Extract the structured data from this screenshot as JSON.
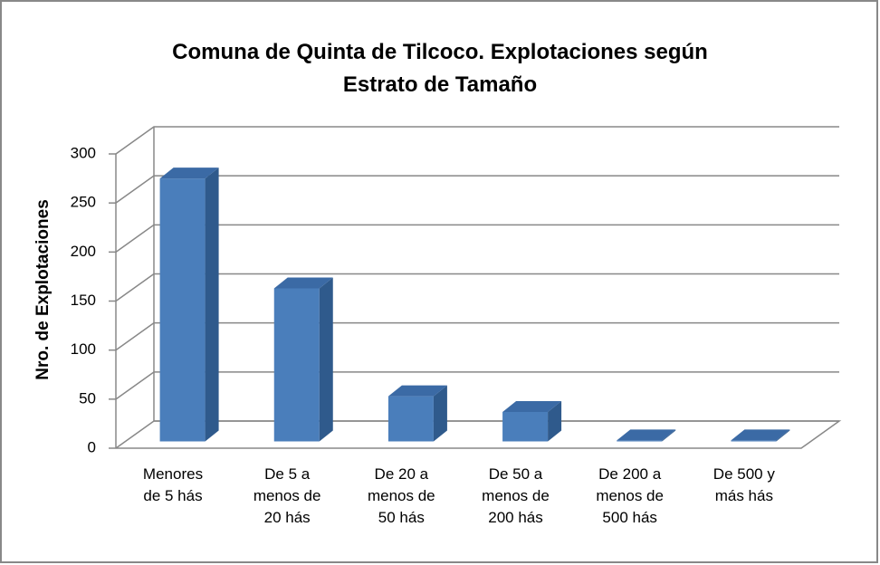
{
  "chart_data": {
    "type": "bar3d",
    "title": "Comuna de Quinta de Tilcoco.  Explotaciones según\nEstrato de Tamaño",
    "y_label": "Nro. de Explotaciones",
    "categories": [
      "Menores\nde 5 hás",
      "De 5 a\nmenos de\n20 hás",
      "De 20 a\nmenos de\n50 hás",
      "De 50 a\nmenos de\n200 hás",
      "De 200 a\nmenos de\n500 hás",
      "De 500 y\nmás hás"
    ],
    "values": [
      268,
      156,
      46,
      30,
      1,
      1
    ],
    "color": "#4a7ebb",
    "ylim": [
      0,
      300
    ],
    "yticks": [
      0,
      50,
      100,
      150,
      200,
      250,
      300
    ],
    "grid": true
  }
}
